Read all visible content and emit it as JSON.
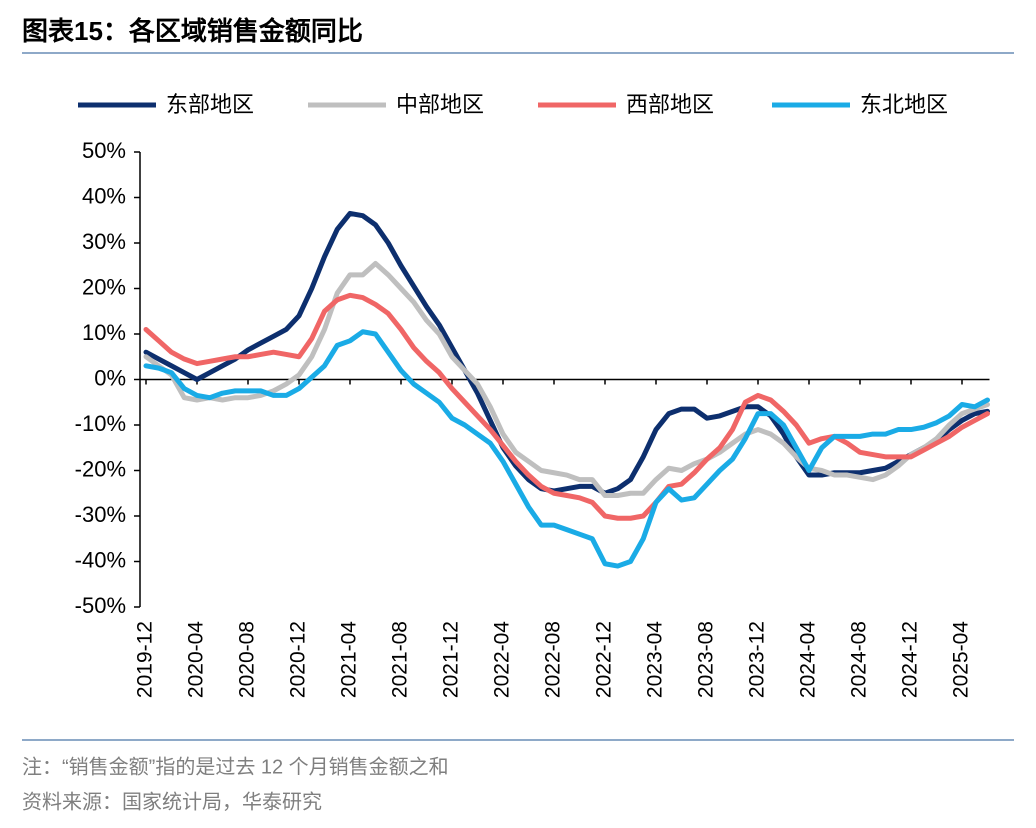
{
  "chart_data": {
    "type": "line",
    "title": "图表15：各区域销售金额同比",
    "note": "注：“销售金额”指的是过去 12 个月销售金额之和",
    "source": "资料来源：国家统计局，华泰研究",
    "categories": [
      "2019-12",
      null,
      null,
      null,
      "2020-04",
      null,
      null,
      null,
      "2020-08",
      null,
      null,
      null,
      "2020-12",
      null,
      null,
      null,
      "2021-04",
      null,
      null,
      null,
      "2021-08",
      null,
      null,
      null,
      "2021-12",
      null,
      null,
      null,
      "2022-04",
      null,
      null,
      null,
      "2022-08",
      null,
      null,
      null,
      "2022-12",
      null,
      null,
      null,
      "2023-04",
      null,
      null,
      null,
      "2023-08",
      null,
      null,
      null,
      "2023-12",
      null,
      null,
      null,
      "2024-04",
      null,
      null,
      null,
      "2024-08",
      null,
      null,
      null,
      "2024-12",
      null,
      null,
      null,
      "2025-04",
      null,
      null
    ],
    "series": [
      {
        "name": "东部地区",
        "color": "#0d2f6e",
        "values": [
          6,
          4.5,
          3,
          1.5,
          0,
          1.5,
          3,
          4.5,
          6.5,
          8,
          9.5,
          11,
          14,
          20,
          27,
          33,
          36.5,
          36,
          34,
          30,
          25,
          20.5,
          16,
          12,
          7,
          2,
          -3,
          -9,
          -15,
          -19,
          -22,
          -24,
          -24.5,
          -24,
          -23.5,
          -23.5,
          -25,
          -24,
          -22,
          -17,
          -11,
          -7.5,
          -6.5,
          -6.5,
          -8.5,
          -8,
          -7,
          -6,
          -6,
          -8,
          -12,
          -17,
          -21,
          -21,
          -20.5,
          -20.5,
          -20.5,
          -20,
          -19.5,
          -18,
          -16.5,
          -15,
          -13.5,
          -11,
          -9,
          -7.5,
          -7
        ]
      },
      {
        "name": "中部地区",
        "color": "#bfbfbf",
        "values": [
          5,
          3,
          1,
          -4,
          -4.5,
          -4,
          -4.5,
          -4,
          -4,
          -3.5,
          -2.5,
          -1,
          1,
          5,
          11,
          19,
          23,
          23,
          25.5,
          23,
          20,
          17,
          13,
          10,
          5,
          2,
          -1,
          -6,
          -12,
          -16,
          -18,
          -20,
          -20.5,
          -21,
          -22,
          -22,
          -25.5,
          -25.5,
          -25,
          -25,
          -22,
          -19.5,
          -20,
          -18.5,
          -17.5,
          -16,
          -14,
          -12,
          -11,
          -12,
          -14,
          -17,
          -19.5,
          -20,
          -21,
          -21,
          -21.5,
          -22,
          -21,
          -19,
          -16.5,
          -15,
          -13,
          -10,
          -7.5,
          -6.5,
          -5.5
        ]
      },
      {
        "name": "西部地区",
        "color": "#f06666",
        "values": [
          11,
          8.5,
          6,
          4.5,
          3.5,
          4,
          4.5,
          5,
          5,
          5.5,
          6,
          5.5,
          5,
          9,
          15,
          17.5,
          18.5,
          18,
          16.5,
          14.5,
          11,
          7,
          4,
          1.5,
          -2,
          -5,
          -8,
          -11,
          -14.5,
          -18,
          -21,
          -23.5,
          -25,
          -25.5,
          -26,
          -27,
          -30,
          -30.5,
          -30.5,
          -30,
          -27,
          -23.5,
          -23,
          -20.5,
          -17.5,
          -15,
          -11,
          -5,
          -3.5,
          -4.5,
          -7,
          -10,
          -14,
          -13,
          -12.5,
          -14,
          -16,
          -16.5,
          -17,
          -17,
          -17,
          -15.5,
          -14,
          -12.5,
          -10.5,
          -9,
          -7.5
        ]
      },
      {
        "name": "东北地区",
        "color": "#1aabe6",
        "values": [
          3,
          2.5,
          1.5,
          -2,
          -3.5,
          -4,
          -3,
          -2.5,
          -2.5,
          -2.5,
          -3.5,
          -3.5,
          -2,
          0.5,
          3,
          7.5,
          8.5,
          10.5,
          10,
          6,
          2,
          -1,
          -3,
          -5,
          -8.5,
          -10,
          -12,
          -14,
          -18,
          -23,
          -28,
          -32,
          -32,
          -33,
          -34,
          -35,
          -40.5,
          -41,
          -40,
          -35,
          -27,
          -24,
          -26.5,
          -26,
          -23,
          -20,
          -17.5,
          -13,
          -7.5,
          -7.5,
          -10,
          -15,
          -20,
          -15,
          -12.5,
          -12.5,
          -12.5,
          -12,
          -12,
          -11,
          -11,
          -10.5,
          -9.5,
          -8,
          -5.5,
          -6,
          -4.5
        ]
      }
    ],
    "ylim": [
      -50,
      50
    ],
    "yticks": [
      {
        "value": -50,
        "label": "-50%"
      },
      {
        "value": -40,
        "label": "-40%"
      },
      {
        "value": -30,
        "label": "-30%"
      },
      {
        "value": -20,
        "label": "-20%"
      },
      {
        "value": -10,
        "label": "-10%"
      },
      {
        "value": 0,
        "label": "0%"
      },
      {
        "value": 10,
        "label": "10%"
      },
      {
        "value": 20,
        "label": "20%"
      },
      {
        "value": 30,
        "label": "30%"
      },
      {
        "value": 40,
        "label": "40%"
      },
      {
        "value": 50,
        "label": "50%"
      }
    ],
    "legend": "top"
  }
}
